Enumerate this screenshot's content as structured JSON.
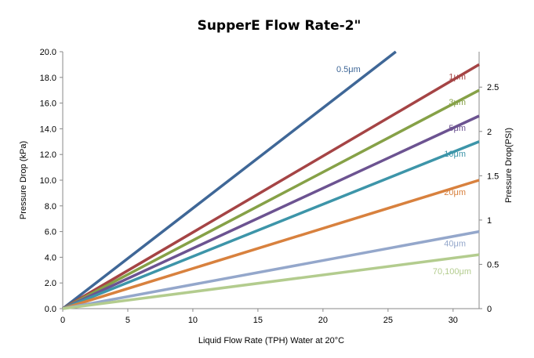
{
  "chart_data": {
    "type": "line",
    "title": "SupperE Flow Rate-2\"",
    "xlabel": "Liquid Flow Rate (TPH) Water at 20°C",
    "ylabel": "Pressure Drop (kPa)",
    "y2label": "Pressure Drop(PSI)",
    "xlim": [
      0,
      32
    ],
    "ylim": [
      0,
      20
    ],
    "y2lim": [
      0,
      2.9
    ],
    "x_ticks": [
      "0",
      "5",
      "10",
      "15",
      "20",
      "25",
      "30"
    ],
    "y_ticks": [
      "0.0",
      "2.0",
      "4.0",
      "6.0",
      "8.0",
      "10.0",
      "12.0",
      "14.0",
      "16.0",
      "18.0",
      "20.0"
    ],
    "y2_ticks": [
      "0",
      "0.5",
      "1",
      "1.5",
      "2",
      "2.5"
    ],
    "grid": false,
    "series": [
      {
        "name": "0.5μm",
        "color": "#3f6797",
        "x": [
          0,
          25.6
        ],
        "y": [
          0,
          20.0
        ]
      },
      {
        "name": "1μm",
        "color": "#a54445",
        "x": [
          0,
          32
        ],
        "y": [
          0,
          19.0
        ]
      },
      {
        "name": "3μm",
        "color": "#86a147",
        "x": [
          0,
          32
        ],
        "y": [
          0,
          17.0
        ]
      },
      {
        "name": "5μm",
        "color": "#6c5391",
        "x": [
          0,
          32
        ],
        "y": [
          0,
          15.0
        ]
      },
      {
        "name": "10μm",
        "color": "#3d95a9",
        "x": [
          0,
          32
        ],
        "y": [
          0,
          13.0
        ]
      },
      {
        "name": "20μm",
        "color": "#d8813e",
        "x": [
          0,
          32
        ],
        "y": [
          0,
          10.0
        ]
      },
      {
        "name": "40μm",
        "color": "#94a7cb",
        "x": [
          0,
          32
        ],
        "y": [
          0,
          6.0
        ]
      },
      {
        "name": "70,100μm",
        "color": "#b3cc8e",
        "x": [
          0,
          32
        ],
        "y": [
          0,
          4.2
        ]
      }
    ]
  }
}
